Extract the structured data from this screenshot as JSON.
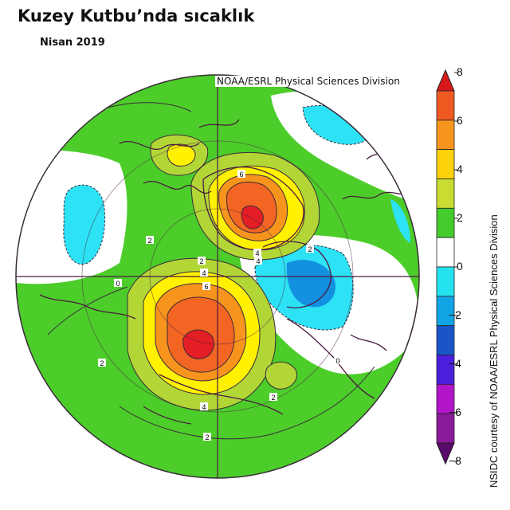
{
  "title": "Kuzey Kutbu’nda sıcaklık",
  "subtitle": "Nisan 2019",
  "credit": "NOAA/ESRL Physical Sciences Division",
  "colorbar": {
    "side_label": "NSIDC courtesy of NOAA/ESRL Physical Sciences Division",
    "ticks": [
      "8",
      "6",
      "4",
      "2",
      "0",
      "−2",
      "−4",
      "−6",
      "−8"
    ],
    "bands": [
      "#d7191c",
      "#ee5a22",
      "#f7941d",
      "#fdd20a",
      "#c8dc32",
      "#44cc2c",
      "#ffffff",
      "#25e2f0",
      "#12a5e6",
      "#1a55c8",
      "#4b1fdc",
      "#b214c8",
      "#8a1a9a",
      "#5a0a6a"
    ]
  },
  "map": {
    "colors": {
      "land_green": "#4ccd2a",
      "yellow_green": "#b3d637",
      "yellow": "#fff100",
      "orange": "#f7941d",
      "red_orange": "#f26522",
      "red": "#e31e24",
      "cyan": "#2de2f5",
      "blue": "#1390e0",
      "contour": "#3a2a3a",
      "coast": "#4b1b3e"
    },
    "contour_labels": [
      "6",
      "4",
      "2",
      "0",
      "2",
      "4",
      "6",
      "2",
      "4",
      "2",
      "2",
      "0",
      "2",
      "4"
    ]
  }
}
